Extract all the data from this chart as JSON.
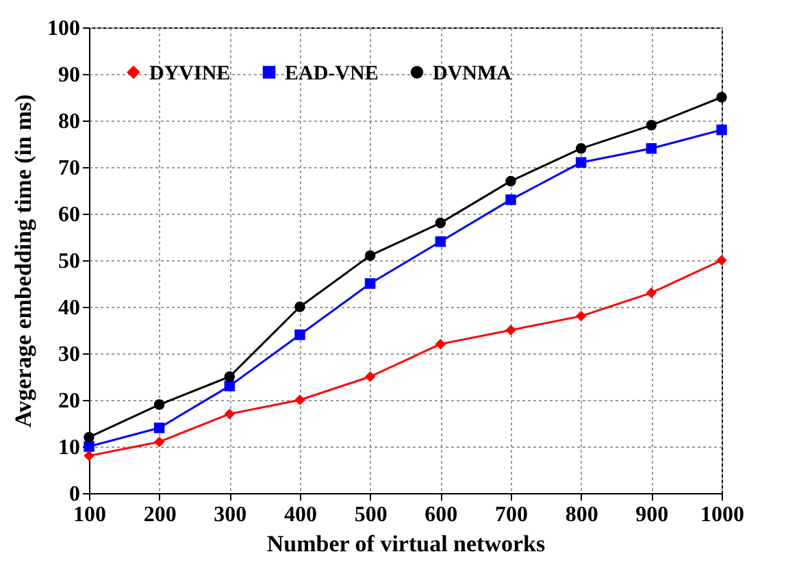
{
  "chart_data": {
    "type": "line",
    "xlabel": "Number of virtual networks",
    "ylabel": "Avgerage embedding time (in ms)",
    "x": [
      100,
      200,
      300,
      400,
      500,
      600,
      700,
      800,
      900,
      1000
    ],
    "series": [
      {
        "name": "DYVINE",
        "color": "#ff0000",
        "marker": "diamond",
        "values": [
          8,
          11,
          17,
          20,
          25,
          32,
          35,
          38,
          43,
          50
        ]
      },
      {
        "name": "EAD-VNE",
        "color": "#0000ff",
        "marker": "square",
        "values": [
          10,
          14,
          23,
          34,
          45,
          54,
          63,
          71,
          74,
          78
        ]
      },
      {
        "name": "DVNMA",
        "color": "#000000",
        "marker": "circle",
        "values": [
          12,
          19,
          25,
          40,
          51,
          58,
          67,
          74,
          79,
          85
        ]
      }
    ],
    "xlim": [
      100,
      1000
    ],
    "xticks": [
      100,
      200,
      300,
      400,
      500,
      600,
      700,
      800,
      900,
      1000
    ],
    "ylim": [
      0,
      100
    ],
    "yticks": [
      0,
      10,
      20,
      30,
      40,
      50,
      60,
      70,
      80,
      90,
      100
    ],
    "grid": true,
    "legend": "top left",
    "line_style": "solid"
  }
}
